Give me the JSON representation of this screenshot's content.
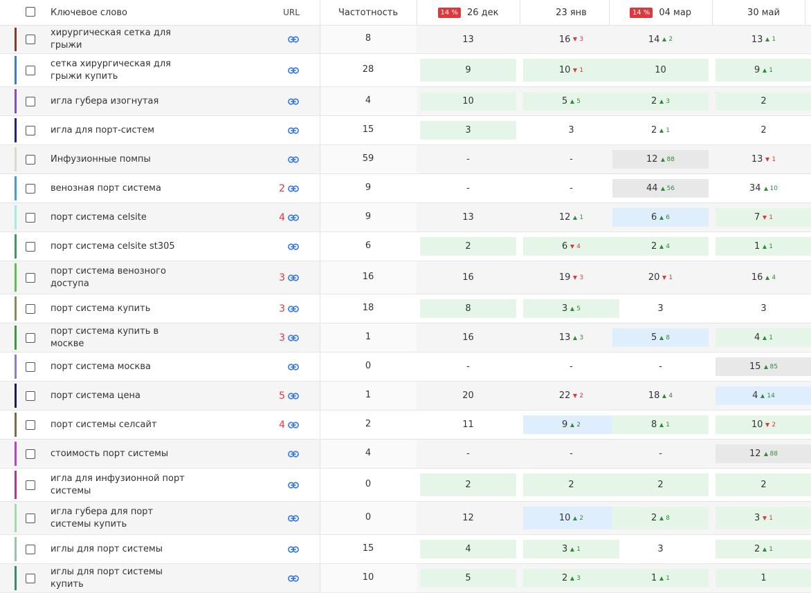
{
  "header": {
    "keyword": "Ключевое слово",
    "url": "URL",
    "frequency": "Частотность",
    "dates": [
      {
        "label": "26 дек",
        "badge": "14 %"
      },
      {
        "label": "23 янв",
        "badge": ""
      },
      {
        "label": "04 мар",
        "badge": "14 %"
      },
      {
        "label": "30 май",
        "badge": ""
      }
    ]
  },
  "rows": [
    {
      "kw": "хирургическая сетка для грыжи",
      "color": "#8b3a2a",
      "count": "",
      "freq": "8",
      "pos": [
        {
          "v": "13",
          "bg": ""
        },
        {
          "v": "16",
          "d": "down",
          "c": "3",
          "bg": ""
        },
        {
          "v": "14",
          "d": "up",
          "c": "2",
          "bg": ""
        },
        {
          "v": "13",
          "d": "up",
          "c": "1",
          "bg": ""
        }
      ]
    },
    {
      "kw": "сетка хирургическая для грыжи купить",
      "color": "#3a7ad9",
      "count": "",
      "freq": "28",
      "pos": [
        {
          "v": "9",
          "bg": "green"
        },
        {
          "v": "10",
          "d": "down",
          "c": "1",
          "bg": "green"
        },
        {
          "v": "10",
          "bg": "green"
        },
        {
          "v": "9",
          "d": "up",
          "c": "1",
          "bg": "green"
        }
      ]
    },
    {
      "kw": "игла губера изогнутая",
      "color": "#7b4ed9",
      "count": "",
      "freq": "4",
      "pos": [
        {
          "v": "10",
          "bg": "green"
        },
        {
          "v": "5",
          "d": "up",
          "c": "5",
          "bg": "green"
        },
        {
          "v": "2",
          "d": "up",
          "c": "3",
          "bg": "green"
        },
        {
          "v": "2",
          "bg": "green"
        }
      ]
    },
    {
      "kw": "игла для порт-систем",
      "color": "#1e1e9a",
      "count": "",
      "freq": "15",
      "pos": [
        {
          "v": "3",
          "bg": "green"
        },
        {
          "v": "3",
          "bg": ""
        },
        {
          "v": "2",
          "d": "up",
          "c": "1",
          "bg": ""
        },
        {
          "v": "2",
          "bg": ""
        }
      ]
    },
    {
      "kw": "Инфузионные помпы",
      "color": "#d9d9c8",
      "count": "",
      "freq": "59",
      "pos": [
        {
          "v": "-",
          "bg": ""
        },
        {
          "v": "-",
          "bg": ""
        },
        {
          "v": "12",
          "d": "up",
          "c": "88",
          "bg": "gray"
        },
        {
          "v": "13",
          "d": "down",
          "c": "1",
          "bg": ""
        }
      ]
    },
    {
      "kw": "венозная порт система",
      "color": "#3aa0e0",
      "count": "2",
      "freq": "9",
      "pos": [
        {
          "v": "-",
          "bg": ""
        },
        {
          "v": "-",
          "bg": ""
        },
        {
          "v": "44",
          "d": "up",
          "c": "56",
          "bg": "gray"
        },
        {
          "v": "34",
          "d": "up",
          "c": "10",
          "bg": ""
        }
      ]
    },
    {
      "kw": "порт система celsite",
      "color": "#a6e8e4",
      "count": "4",
      "freq": "9",
      "pos": [
        {
          "v": "13",
          "bg": ""
        },
        {
          "v": "12",
          "d": "up",
          "c": "1",
          "bg": ""
        },
        {
          "v": "6",
          "d": "up",
          "c": "6",
          "bg": "blue"
        },
        {
          "v": "7",
          "d": "down",
          "c": "1",
          "bg": "green"
        }
      ]
    },
    {
      "kw": "порт система celsite st305",
      "color": "#3a9a5a",
      "count": "",
      "freq": "6",
      "pos": [
        {
          "v": "2",
          "bg": "green"
        },
        {
          "v": "6",
          "d": "down",
          "c": "4",
          "bg": "green"
        },
        {
          "v": "2",
          "d": "up",
          "c": "4",
          "bg": "green"
        },
        {
          "v": "1",
          "d": "up",
          "c": "1",
          "bg": "green"
        }
      ]
    },
    {
      "kw": "порт система венозного доступа",
      "color": "#5ac44a",
      "count": "3",
      "freq": "16",
      "pos": [
        {
          "v": "16",
          "bg": ""
        },
        {
          "v": "19",
          "d": "down",
          "c": "3",
          "bg": ""
        },
        {
          "v": "20",
          "d": "down",
          "c": "1",
          "bg": ""
        },
        {
          "v": "16",
          "d": "up",
          "c": "4",
          "bg": ""
        }
      ]
    },
    {
      "kw": "порт система купить",
      "color": "#8a8a5a",
      "count": "3",
      "freq": "18",
      "pos": [
        {
          "v": "8",
          "bg": "green"
        },
        {
          "v": "3",
          "d": "up",
          "c": "5",
          "bg": "green"
        },
        {
          "v": "3",
          "bg": ""
        },
        {
          "v": "3",
          "bg": ""
        }
      ]
    },
    {
      "kw": "порт система купить в москве",
      "color": "#3a9a3a",
      "count": "3",
      "freq": "1",
      "pos": [
        {
          "v": "16",
          "bg": ""
        },
        {
          "v": "13",
          "d": "up",
          "c": "3",
          "bg": ""
        },
        {
          "v": "5",
          "d": "up",
          "c": "8",
          "bg": "blue"
        },
        {
          "v": "4",
          "d": "up",
          "c": "1",
          "bg": "green"
        }
      ]
    },
    {
      "kw": "порт система москва",
      "color": "#8a7ad9",
      "count": "",
      "freq": "0",
      "pos": [
        {
          "v": "-",
          "bg": ""
        },
        {
          "v": "-",
          "bg": ""
        },
        {
          "v": "-",
          "bg": ""
        },
        {
          "v": "15",
          "d": "up",
          "c": "85",
          "bg": "gray"
        }
      ]
    },
    {
      "kw": "порт система цена",
      "color": "#1a1a5a",
      "count": "5",
      "freq": "1",
      "pos": [
        {
          "v": "20",
          "bg": ""
        },
        {
          "v": "22",
          "d": "down",
          "c": "2",
          "bg": ""
        },
        {
          "v": "18",
          "d": "up",
          "c": "4",
          "bg": ""
        },
        {
          "v": "4",
          "d": "up",
          "c": "14",
          "bg": "blue"
        }
      ]
    },
    {
      "kw": "порт системы селсайт",
      "color": "#7a6a4a",
      "count": "4",
      "freq": "2",
      "pos": [
        {
          "v": "11",
          "bg": ""
        },
        {
          "v": "9",
          "d": "up",
          "c": "2",
          "bg": "blue"
        },
        {
          "v": "8",
          "d": "up",
          "c": "1",
          "bg": "green"
        },
        {
          "v": "10",
          "d": "down",
          "c": "2",
          "bg": "green"
        }
      ]
    },
    {
      "kw": "стоимость порт системы",
      "color": "#c43ad9",
      "count": "",
      "freq": "4",
      "pos": [
        {
          "v": "-",
          "bg": ""
        },
        {
          "v": "-",
          "bg": ""
        },
        {
          "v": "-",
          "bg": ""
        },
        {
          "v": "12",
          "d": "up",
          "c": "88",
          "bg": "gray"
        }
      ]
    },
    {
      "kw": "игла для инфузионной порт системы",
      "color": "#c4308a",
      "count": "",
      "freq": "0",
      "pos": [
        {
          "v": "2",
          "bg": "green"
        },
        {
          "v": "2",
          "bg": "green"
        },
        {
          "v": "2",
          "bg": "green"
        },
        {
          "v": "2",
          "bg": "green"
        }
      ]
    },
    {
      "kw": "игла губера для порт системы купить",
      "color": "#a8d8b0",
      "count": "",
      "freq": "0",
      "pos": [
        {
          "v": "12",
          "bg": ""
        },
        {
          "v": "10",
          "d": "up",
          "c": "2",
          "bg": "blue"
        },
        {
          "v": "2",
          "d": "up",
          "c": "8",
          "bg": "green"
        },
        {
          "v": "3",
          "d": "down",
          "c": "1",
          "bg": "green"
        }
      ]
    },
    {
      "kw": "иглы для порт системы",
      "color": "#9ac4a8",
      "count": "",
      "freq": "15",
      "pos": [
        {
          "v": "4",
          "bg": "green"
        },
        {
          "v": "3",
          "d": "up",
          "c": "1",
          "bg": "green"
        },
        {
          "v": "3",
          "bg": ""
        },
        {
          "v": "2",
          "d": "up",
          "c": "1",
          "bg": "green"
        }
      ]
    },
    {
      "kw": "иглы для порт системы купить",
      "color": "#3a8a6a",
      "count": "",
      "freq": "10",
      "pos": [
        {
          "v": "5",
          "bg": "green"
        },
        {
          "v": "2",
          "d": "up",
          "c": "3",
          "bg": "green"
        },
        {
          "v": "1",
          "d": "up",
          "c": "1",
          "bg": "green"
        },
        {
          "v": "1",
          "bg": "green"
        }
      ]
    }
  ]
}
